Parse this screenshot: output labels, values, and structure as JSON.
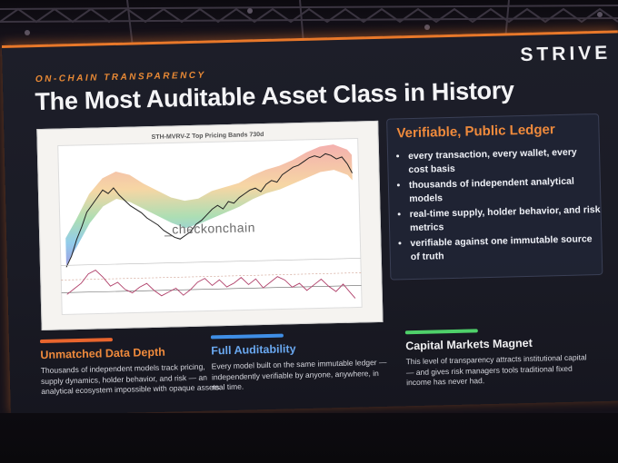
{
  "slide": {
    "eyebrow": "ON-CHAIN TRANSPARENCY",
    "logo": "STRIVE",
    "title": "The Most Auditable Asset Class in History"
  },
  "chart": {
    "title": "STH-MVRV-Z Top Pricing Bands 730d",
    "watermark": "_checkonchain"
  },
  "panel": {
    "title": "Verifiable, Public Ledger",
    "bullets": [
      "every transaction, every wallet, every cost basis",
      "thousands of independent analytical models",
      "real-time supply, holder behavior, and risk metrics",
      "verifiable against one immutable source of truth"
    ]
  },
  "columns": [
    {
      "title": "Unmatched Data Depth",
      "text": "Thousands of independent models track pricing, supply dynamics, holder behavior, and risk — an analytical ecosystem impossible with opaque assets.",
      "accent": "#e8652e"
    },
    {
      "title": "Full Auditability",
      "text": "Every model built on the same immutable ledger — independently verifiable by anyone, anywhere, in real time.",
      "accent": "#3f8ee6"
    },
    {
      "title": "Capital Markets Magnet",
      "text": "This level of transparency attracts institutional capital — and gives risk managers tools traditional fixed income has never had.",
      "accent": "#4fd06a"
    }
  ],
  "colors": {
    "title_accent": "#ef8a3c",
    "stage_edge": "#e8782a",
    "panel_bg": "#20243a"
  },
  "icons": [
    "stage-truss",
    "bullet-dot"
  ]
}
